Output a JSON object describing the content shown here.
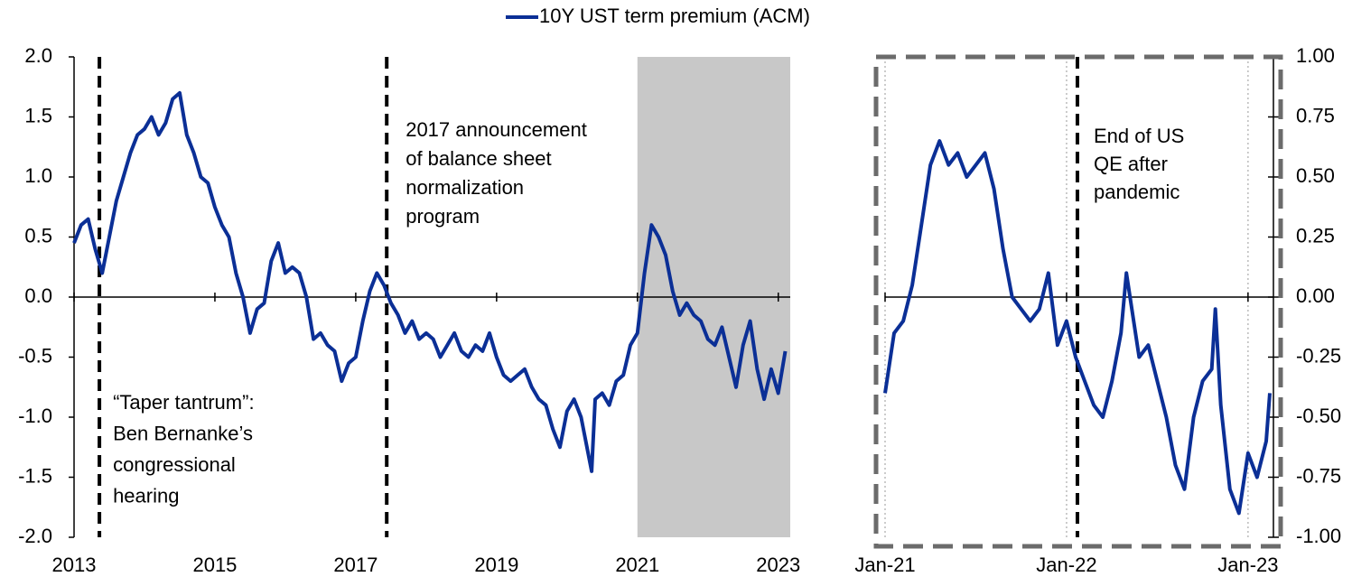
{
  "chart_data": [
    {
      "type": "line",
      "x": [
        2013.0,
        2013.1,
        2013.2,
        2013.3,
        2013.4,
        2013.5,
        2013.6,
        2013.7,
        2013.8,
        2013.9,
        2014.0,
        2014.1,
        2014.2,
        2014.3,
        2014.4,
        2014.5,
        2014.6,
        2014.7,
        2014.8,
        2014.9,
        2015.0,
        2015.1,
        2015.2,
        2015.3,
        2015.4,
        2015.5,
        2015.6,
        2015.7,
        2015.8,
        2015.9,
        2016.0,
        2016.1,
        2016.2,
        2016.3,
        2016.4,
        2016.5,
        2016.6,
        2016.7,
        2016.8,
        2016.9,
        2017.0,
        2017.1,
        2017.2,
        2017.3,
        2017.4,
        2017.5,
        2017.6,
        2017.7,
        2017.8,
        2017.9,
        2018.0,
        2018.1,
        2018.2,
        2018.3,
        2018.4,
        2018.5,
        2018.6,
        2018.7,
        2018.8,
        2018.9,
        2019.0,
        2019.1,
        2019.2,
        2019.3,
        2019.4,
        2019.5,
        2019.6,
        2019.7,
        2019.8,
        2019.9,
        2020.0,
        2020.1,
        2020.2,
        2020.3,
        2020.35,
        2020.4,
        2020.5,
        2020.6,
        2020.7,
        2020.8,
        2020.9,
        2021.0,
        2021.1,
        2021.2,
        2021.3,
        2021.4,
        2021.5,
        2021.6,
        2021.7,
        2021.8,
        2021.9,
        2022.0,
        2022.1,
        2022.2,
        2022.3,
        2022.4,
        2022.5,
        2022.6,
        2022.7,
        2022.8,
        2022.9,
        2023.0,
        2023.1
      ],
      "series": [
        {
          "name": "10Y UST term premium (ACM)",
          "color": "#0b2f96",
          "values": [
            0.45,
            0.6,
            0.65,
            0.4,
            0.2,
            0.5,
            0.8,
            1.0,
            1.2,
            1.35,
            1.4,
            1.5,
            1.35,
            1.45,
            1.65,
            1.7,
            1.35,
            1.2,
            1.0,
            0.95,
            0.75,
            0.6,
            0.5,
            0.2,
            0.0,
            -0.3,
            -0.1,
            -0.05,
            0.3,
            0.45,
            0.2,
            0.25,
            0.2,
            0.0,
            -0.35,
            -0.3,
            -0.4,
            -0.45,
            -0.7,
            -0.55,
            -0.5,
            -0.2,
            0.05,
            0.2,
            0.1,
            -0.05,
            -0.15,
            -0.3,
            -0.2,
            -0.35,
            -0.3,
            -0.35,
            -0.5,
            -0.4,
            -0.3,
            -0.45,
            -0.5,
            -0.4,
            -0.45,
            -0.3,
            -0.5,
            -0.65,
            -0.7,
            -0.65,
            -0.6,
            -0.75,
            -0.85,
            -0.9,
            -1.1,
            -1.25,
            -0.95,
            -0.85,
            -1.0,
            -1.3,
            -1.45,
            -0.85,
            -0.8,
            -0.9,
            -0.7,
            -0.65,
            -0.4,
            -0.3,
            0.2,
            0.6,
            0.5,
            0.35,
            0.05,
            -0.15,
            -0.05,
            -0.15,
            -0.2,
            -0.35,
            -0.4,
            -0.25,
            -0.5,
            -0.75,
            -0.4,
            -0.2,
            -0.6,
            -0.85,
            -0.6,
            -0.8,
            -0.45
          ]
        }
      ],
      "xlim": [
        2013,
        2023.17
      ],
      "xticks": [
        2013,
        2015,
        2017,
        2019,
        2021,
        2023
      ],
      "ylim": [
        -2,
        2
      ],
      "yticks": [
        {
          "value": -2,
          "label": "-2.0"
        },
        -1.5,
        {
          "value": -1,
          "label": "-1.0"
        },
        -0.5,
        {
          "value": 0,
          "label": "0.0"
        },
        0.5,
        {
          "value": 1,
          "label": "1.0"
        },
        1.5,
        {
          "value": 2,
          "label": "2.0"
        }
      ],
      "shade": [
        2021.0,
        2023.17
      ],
      "events": [
        {
          "x": 2013.36,
          "label": [
            "“Taper tantrum”:",
            "Ben Bernanke’s",
            "congressional",
            "hearing"
          ]
        },
        {
          "x": 2017.44,
          "label": [
            "2017 announcement",
            "of balance sheet",
            "normalization",
            "program"
          ]
        }
      ]
    },
    {
      "type": "line",
      "x": [
        2021.0,
        2021.05,
        2021.1,
        2021.15,
        2021.2,
        2021.25,
        2021.3,
        2021.35,
        2021.4,
        2021.45,
        2021.5,
        2021.55,
        2021.6,
        2021.65,
        2021.7,
        2021.75,
        2021.8,
        2021.85,
        2021.9,
        2021.95,
        2022.0,
        2022.05,
        2022.1,
        2022.15,
        2022.2,
        2022.25,
        2022.3,
        2022.33,
        2022.4,
        2022.45,
        2022.5,
        2022.55,
        2022.6,
        2022.65,
        2022.7,
        2022.75,
        2022.8,
        2022.82,
        2022.85,
        2022.9,
        2022.95,
        2023.0,
        2023.05,
        2023.1,
        2023.12
      ],
      "values": [
        -0.4,
        -0.15,
        -0.1,
        0.05,
        0.3,
        0.55,
        0.65,
        0.55,
        0.6,
        0.5,
        0.55,
        0.6,
        0.45,
        0.2,
        0.0,
        -0.05,
        -0.1,
        -0.05,
        0.1,
        -0.2,
        -0.1,
        -0.25,
        -0.35,
        -0.45,
        -0.5,
        -0.35,
        -0.15,
        0.1,
        -0.25,
        -0.2,
        -0.35,
        -0.5,
        -0.7,
        -0.8,
        -0.5,
        -0.35,
        -0.3,
        -0.05,
        -0.45,
        -0.8,
        -0.9,
        -0.65,
        -0.75,
        -0.6,
        -0.4
      ],
      "color": "#0b2f96",
      "xlim": [
        2021,
        2023.14
      ],
      "xticks": [
        {
          "value": 2021,
          "label": "Jan-21"
        },
        {
          "value": 2022,
          "label": "Jan-22"
        },
        {
          "value": 2023,
          "label": "Jan-23"
        }
      ],
      "xgrid": true,
      "ylim": [
        -1,
        1
      ],
      "yticks": [
        {
          "value": -1,
          "label": "-1.00"
        },
        -0.75,
        {
          "value": -0.5,
          "label": "-0.50"
        },
        -0.25,
        {
          "value": 0,
          "label": "0.00"
        },
        0.25,
        {
          "value": 0.5,
          "label": "0.50"
        },
        0.75,
        {
          "value": 1,
          "label": "1.00"
        }
      ],
      "events": [
        {
          "x": 2022.06,
          "label": [
            "End of US",
            "QE after",
            "pandemic"
          ]
        }
      ]
    }
  ]
}
